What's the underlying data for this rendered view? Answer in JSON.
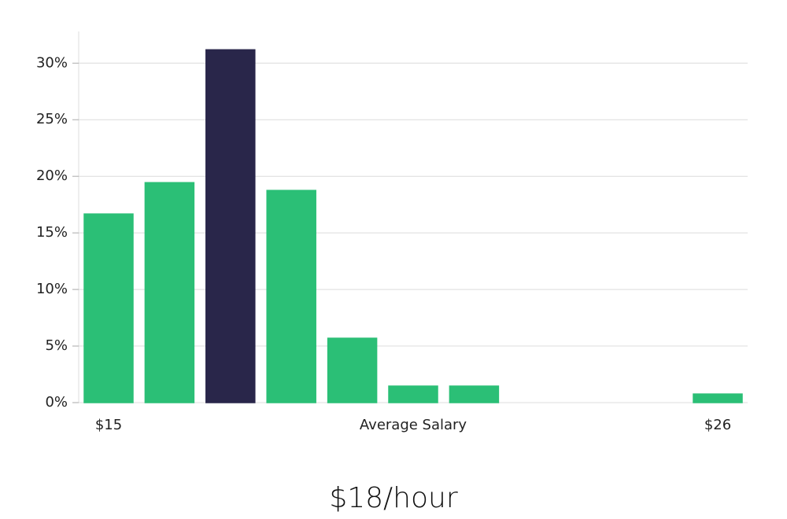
{
  "chart_data": {
    "type": "bar",
    "categories": [
      "$15",
      null,
      null,
      null,
      null,
      null,
      null,
      null,
      null,
      null,
      "$26"
    ],
    "values": [
      16.67,
      19.44,
      31.18,
      18.75,
      5.69,
      1.46,
      1.46,
      0,
      0,
      0,
      0.76
    ],
    "colors": [
      "#2bbf76",
      "#2bbf76",
      "#29264a",
      "#2bbf76",
      "#2bbf76",
      "#2bbf76",
      "#2bbf76",
      "#2bbf76",
      "#2bbf76",
      "#2bbf76",
      "#2bbf76"
    ],
    "ylim": [
      0,
      32.8
    ],
    "yticks": [
      {
        "value": 0,
        "label": "0%"
      },
      {
        "value": 5,
        "label": "5%"
      },
      {
        "value": 10,
        "label": "10%"
      },
      {
        "value": 15,
        "label": "15%"
      },
      {
        "value": 20,
        "label": "20%"
      },
      {
        "value": 25,
        "label": "25%"
      },
      {
        "value": 30,
        "label": "30%"
      }
    ],
    "grid": true,
    "xlabel": "Average Salary",
    "summary": "$18/hour"
  }
}
